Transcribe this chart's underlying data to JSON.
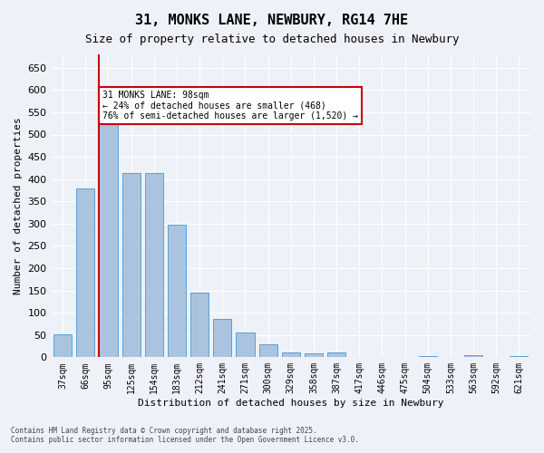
{
  "title": "31, MONKS LANE, NEWBURY, RG14 7HE",
  "subtitle": "Size of property relative to detached houses in Newbury",
  "xlabel": "Distribution of detached houses by size in Newbury",
  "ylabel": "Number of detached properties",
  "categories": [
    "37sqm",
    "66sqm",
    "95sqm",
    "125sqm",
    "154sqm",
    "183sqm",
    "212sqm",
    "241sqm",
    "271sqm",
    "300sqm",
    "329sqm",
    "358sqm",
    "387sqm",
    "417sqm",
    "446sqm",
    "475sqm",
    "504sqm",
    "533sqm",
    "563sqm",
    "592sqm",
    "621sqm"
  ],
  "values": [
    52,
    378,
    523,
    414,
    414,
    297,
    145,
    86,
    56,
    29,
    10,
    8,
    11,
    0,
    0,
    0,
    3,
    0,
    4,
    0,
    3
  ],
  "bar_color": "#aac4e0",
  "bar_edge_color": "#5a9fd4",
  "highlight_bar_index": 2,
  "highlight_line_color": "#cc0000",
  "annotation_text": "31 MONKS LANE: 98sqm\n← 24% of detached houses are smaller (468)\n76% of semi-detached houses are larger (1,520) →",
  "annotation_box_color": "#ffffff",
  "annotation_box_edge_color": "#cc0000",
  "ylim": [
    0,
    680
  ],
  "yticks": [
    0,
    50,
    100,
    150,
    200,
    250,
    300,
    350,
    400,
    450,
    500,
    550,
    600,
    650
  ],
  "bg_color": "#eef2f8",
  "grid_color": "#ffffff",
  "footer_line1": "Contains HM Land Registry data © Crown copyright and database right 2025.",
  "footer_line2": "Contains public sector information licensed under the Open Government Licence v3.0."
}
